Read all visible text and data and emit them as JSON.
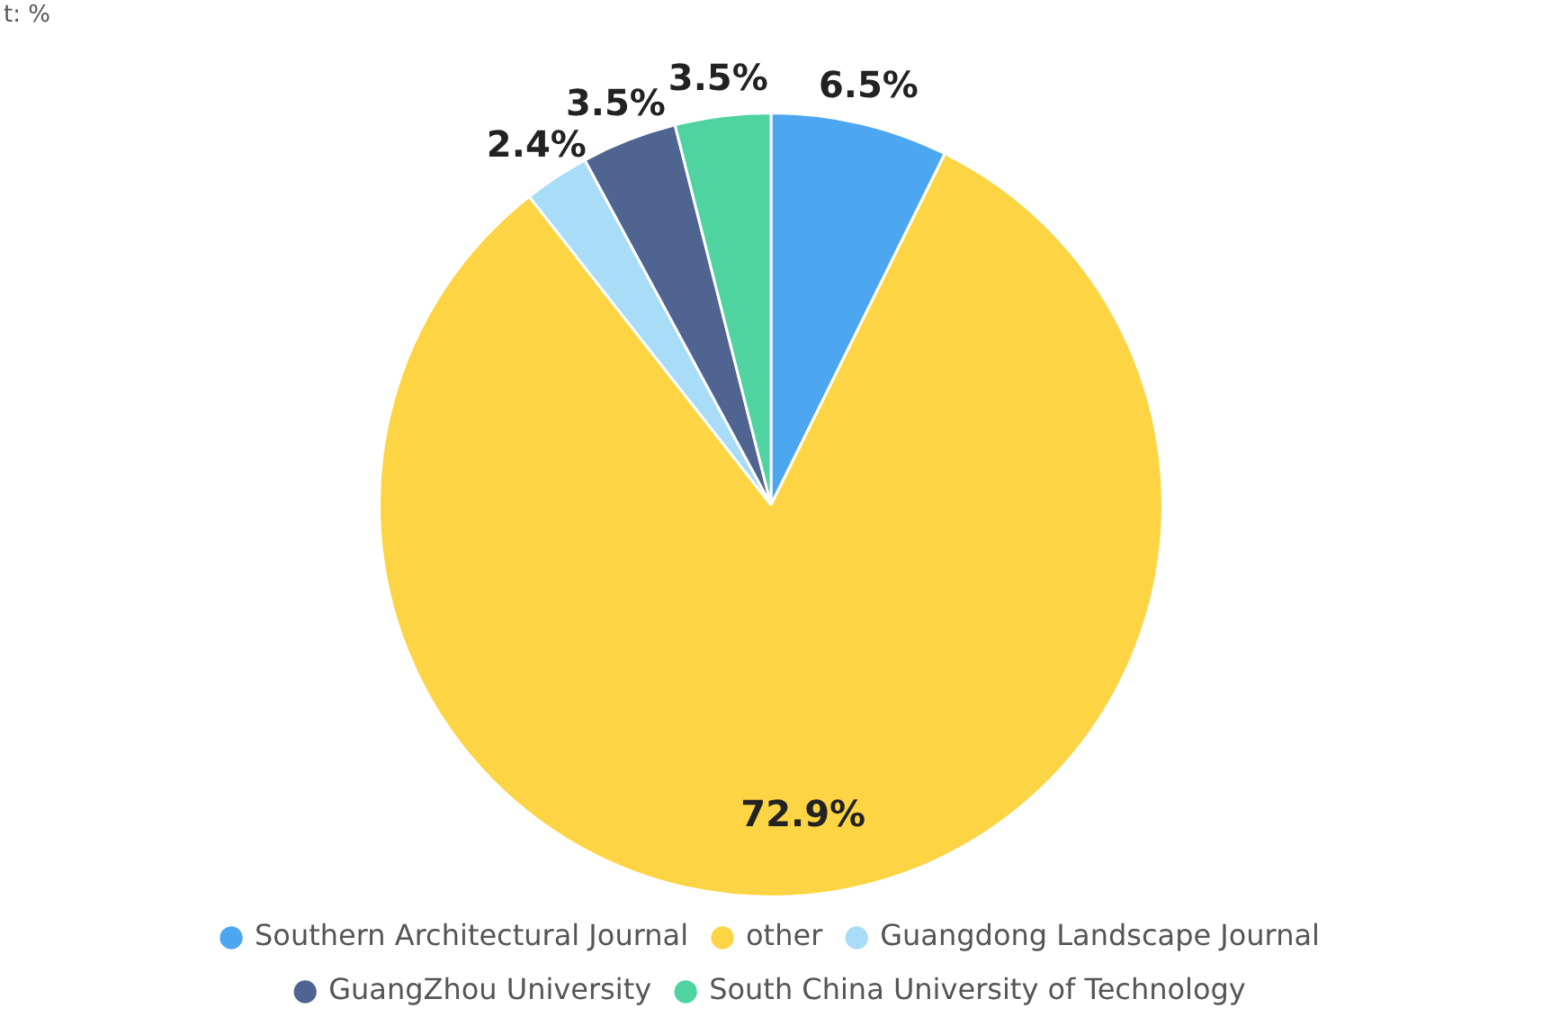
{
  "chart_data": {
    "type": "pie",
    "subtitle": "t: %",
    "categories": [
      "Southern Architectural Journal",
      "other",
      "Guangdong Landscape Journal",
      "GuangZhou University",
      "South China University of Technology"
    ],
    "values": [
      6.5,
      72.9,
      2.4,
      3.5,
      3.5
    ],
    "value_labels": [
      "6.5%",
      "72.9%",
      "2.4%",
      "3.5%",
      "3.5%"
    ],
    "colors": [
      "#4da6f0",
      "#fdd544",
      "#a8dcf7",
      "#4f6490",
      "#4fd3a0"
    ],
    "legend": "bottom"
  }
}
